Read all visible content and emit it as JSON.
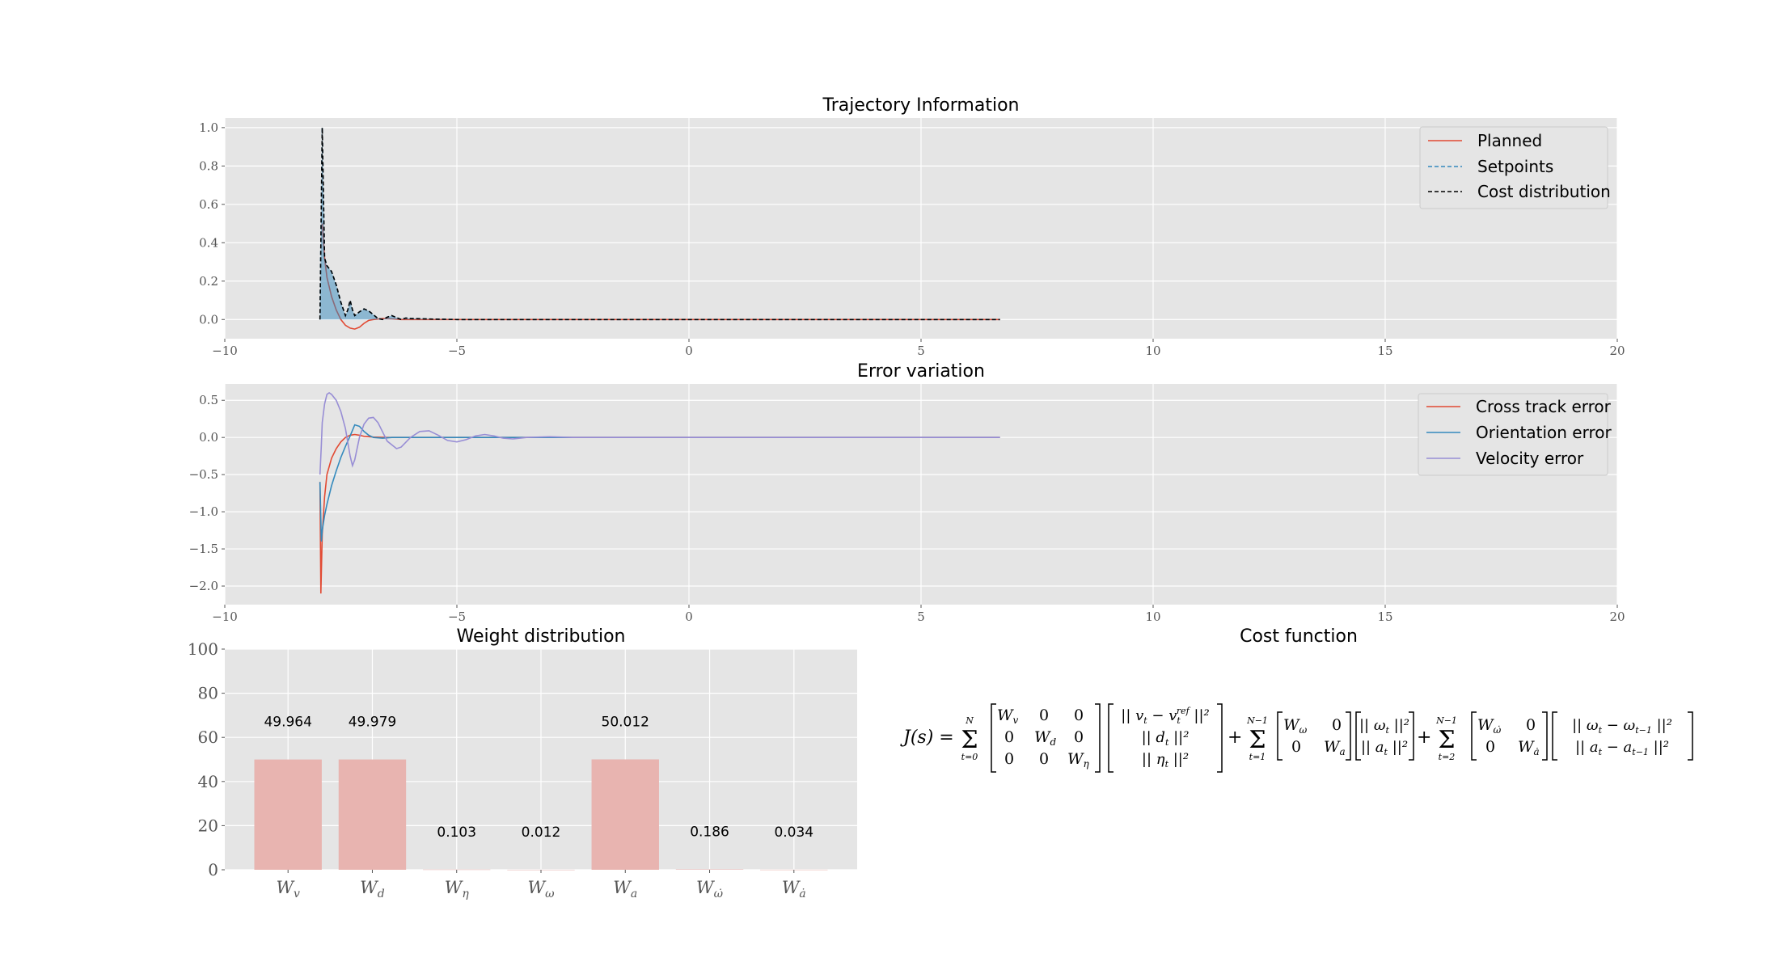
{
  "chart_data": [
    {
      "type": "line",
      "title": "Trajectory Information",
      "xlim": [
        -10,
        20
      ],
      "ylim": [
        -0.1,
        1.05
      ],
      "xticks": [
        "-10",
        "-5",
        "0",
        "5",
        "10",
        "15",
        "20"
      ],
      "yticks": [
        "0.0",
        "0.2",
        "0.4",
        "0.6",
        "0.8",
        "1.0"
      ],
      "legend_position": "top-right",
      "series": [
        {
          "name": "Planned",
          "color": "#e24a33",
          "style": "solid",
          "x": [
            -7.9,
            -7.85,
            -7.8,
            -7.7,
            -7.6,
            -7.5,
            -7.4,
            -7.3,
            -7.2,
            -7.1,
            -7.0,
            -6.9,
            -6.8,
            -6.6,
            -6.4,
            -6.2,
            -6.0,
            -5.5,
            -5.0,
            0,
            6.7
          ],
          "y": [
            0.5,
            0.32,
            0.22,
            0.12,
            0.05,
            0.0,
            -0.03,
            -0.045,
            -0.05,
            -0.04,
            -0.02,
            -0.005,
            0.0,
            0.005,
            0.003,
            0.0,
            0.0,
            0.0,
            0.0,
            0.0,
            0.0
          ]
        },
        {
          "name": "Setpoints",
          "color": "#348abd",
          "style": "dashed",
          "x": [
            -7.95,
            -7.9,
            -7.85,
            -7.8,
            -7.7,
            -7.6,
            -7.5,
            -7.4,
            -7.35,
            -7.3,
            -7.25,
            -7.2,
            -7.1,
            -7.0,
            -6.9,
            -6.8,
            -6.7,
            -6.6,
            -6.5,
            -6.4,
            -6.3,
            -6.2,
            -6.1,
            -6.0,
            -5.8,
            -5.5,
            -5.0,
            0,
            6.7
          ],
          "y": [
            0.0,
            1.0,
            0.32,
            0.28,
            0.25,
            0.18,
            0.09,
            0.02,
            0.05,
            0.1,
            0.05,
            0.02,
            0.04,
            0.055,
            0.045,
            0.025,
            0.005,
            0.0,
            0.012,
            0.02,
            0.01,
            0.0,
            0.008,
            0.005,
            0.004,
            0.002,
            0.0,
            0.0,
            0.0
          ],
          "fill": true
        },
        {
          "name": "Cost distribution",
          "color": "#000000",
          "style": "dashed",
          "x": [
            -7.95,
            -7.9,
            -7.85,
            -7.8,
            -7.7,
            -7.6,
            -7.5,
            -7.4,
            -7.35,
            -7.3,
            -7.25,
            -7.2,
            -7.1,
            -7.0,
            -6.9,
            -6.8,
            -6.7,
            -6.6,
            -6.5,
            -6.4,
            -6.3,
            -6.2,
            -6.1,
            -6.0,
            -5.8,
            -5.5,
            -5.0,
            0,
            6.7
          ],
          "y": [
            0.0,
            1.0,
            0.32,
            0.28,
            0.25,
            0.18,
            0.09,
            0.02,
            0.05,
            0.1,
            0.05,
            0.02,
            0.04,
            0.055,
            0.045,
            0.025,
            0.005,
            0.0,
            0.012,
            0.02,
            0.01,
            0.0,
            0.008,
            0.005,
            0.004,
            0.002,
            0.0,
            0.0,
            0.0
          ]
        }
      ]
    },
    {
      "type": "line",
      "title": "Error variation",
      "xlim": [
        -10,
        20
      ],
      "ylim": [
        -2.25,
        0.72
      ],
      "xticks": [
        "-10",
        "-5",
        "0",
        "5",
        "10",
        "15",
        "20"
      ],
      "yticks": [
        "-2.0",
        "-1.5",
        "-1.0",
        "-0.5",
        "0.0",
        "0.5"
      ],
      "legend_position": "top-right",
      "series": [
        {
          "name": "Cross track error",
          "color": "#e24a33",
          "x": [
            -7.95,
            -7.93,
            -7.9,
            -7.85,
            -7.8,
            -7.7,
            -7.6,
            -7.5,
            -7.4,
            -7.3,
            -7.2,
            -7.1,
            -7.0,
            -6.8,
            -6.5,
            -6.0,
            0,
            6.7
          ],
          "y": [
            -0.6,
            -2.1,
            -1.3,
            -0.8,
            -0.5,
            -0.28,
            -0.15,
            -0.06,
            0.0,
            0.03,
            0.04,
            0.03,
            0.015,
            0.005,
            0.0,
            0.0,
            0.0,
            0.0
          ]
        },
        {
          "name": "Orientation error",
          "color": "#348abd",
          "x": [
            -7.95,
            -7.92,
            -7.9,
            -7.85,
            -7.8,
            -7.7,
            -7.6,
            -7.5,
            -7.4,
            -7.3,
            -7.2,
            -7.1,
            -7.0,
            -6.9,
            -6.8,
            -6.6,
            -6.4,
            -6.0,
            0,
            6.7
          ],
          "y": [
            -0.6,
            -1.4,
            -1.25,
            -1.05,
            -0.9,
            -0.65,
            -0.45,
            -0.27,
            -0.12,
            0.02,
            0.17,
            0.15,
            0.08,
            0.03,
            0.0,
            -0.01,
            0.0,
            0.0,
            0.0,
            0.0
          ]
        },
        {
          "name": "Velocity error",
          "color": "#988ed5",
          "x": [
            -7.95,
            -7.92,
            -7.9,
            -7.85,
            -7.8,
            -7.75,
            -7.7,
            -7.6,
            -7.5,
            -7.4,
            -7.3,
            -7.25,
            -7.2,
            -7.1,
            -7.0,
            -6.9,
            -6.8,
            -6.7,
            -6.5,
            -6.3,
            -6.2,
            -6.0,
            -5.8,
            -5.6,
            -5.4,
            -5.2,
            -5.0,
            -4.8,
            -4.6,
            -4.4,
            -4.2,
            -4.0,
            -3.8,
            -3.5,
            -3.0,
            -2.5,
            0,
            6.7
          ],
          "y": [
            -0.5,
            -0.1,
            0.2,
            0.45,
            0.58,
            0.6,
            0.58,
            0.5,
            0.35,
            0.12,
            -0.25,
            -0.38,
            -0.3,
            0.0,
            0.18,
            0.26,
            0.27,
            0.2,
            -0.05,
            -0.15,
            -0.13,
            0.0,
            0.08,
            0.09,
            0.03,
            -0.04,
            -0.06,
            -0.03,
            0.02,
            0.04,
            0.02,
            -0.01,
            -0.02,
            0.0,
            0.01,
            0.0,
            0.0,
            0.0
          ]
        }
      ]
    },
    {
      "type": "bar",
      "title": "Weight distribution",
      "categories": [
        "W_v",
        "W_d",
        "W_η",
        "W_ω",
        "W_a",
        "W_ω̇",
        "W_ȧ"
      ],
      "values": [
        49.964,
        49.979,
        0.103,
        0.012,
        50.012,
        0.186,
        0.034
      ],
      "data_labels": [
        "49.964",
        "49.979",
        "0.103",
        "0.012",
        "50.012",
        "0.186",
        "0.034"
      ],
      "ylim": [
        0,
        100
      ],
      "yticks": [
        "0",
        "20",
        "40",
        "60",
        "80",
        "100"
      ],
      "bar_color": "#e8b4b0"
    }
  ],
  "cost_function": {
    "title": "Cost function",
    "lhs": "J(s) =",
    "plus": "+"
  }
}
